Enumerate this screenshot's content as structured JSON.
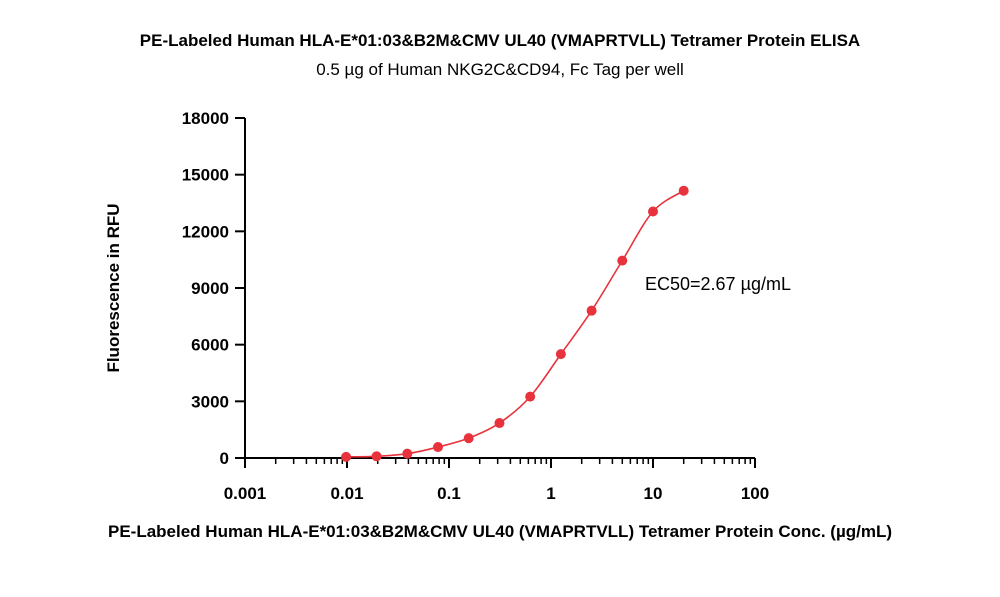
{
  "chart_data": {
    "type": "scatter",
    "title": "PE-Labeled Human HLA-E*01:03&B2M&CMV UL40 (VMAPRTVLL) Tetramer Protein ELISA",
    "subtitle": "0.5 µg of Human NKG2C&CD94, Fc Tag per well",
    "xlabel": "PE-Labeled Human HLA-E*01:03&B2M&CMV UL40 (VMAPRTVLL) Tetramer Protein Conc. (µg/mL)",
    "ylabel": "Fluorescence in RFU",
    "x_scale": "log",
    "xlim": [
      0.001,
      100
    ],
    "ylim": [
      0,
      18000
    ],
    "x_ticks": [
      0.001,
      0.01,
      0.1,
      1,
      10,
      100
    ],
    "x_tick_labels": [
      "0.001",
      "0.01",
      "0.1",
      "1",
      "10",
      "100"
    ],
    "y_ticks": [
      0,
      3000,
      6000,
      9000,
      12000,
      15000,
      18000
    ],
    "y_tick_labels": [
      "0",
      "3000",
      "6000",
      "9000",
      "12000",
      "15000",
      "18000"
    ],
    "grid": false,
    "legend": "none",
    "series": [
      {
        "color": "#e8333c",
        "fit": "4PL",
        "x": [
          0.0098,
          0.0195,
          0.039,
          0.078,
          0.156,
          0.3125,
          0.625,
          1.25,
          2.5,
          5,
          10,
          20
        ],
        "y": [
          60,
          90,
          230,
          580,
          1050,
          1850,
          3250,
          5500,
          7800,
          10450,
          13050,
          14150
        ]
      }
    ],
    "annotation": "EC50=2.67 µg/mL"
  }
}
